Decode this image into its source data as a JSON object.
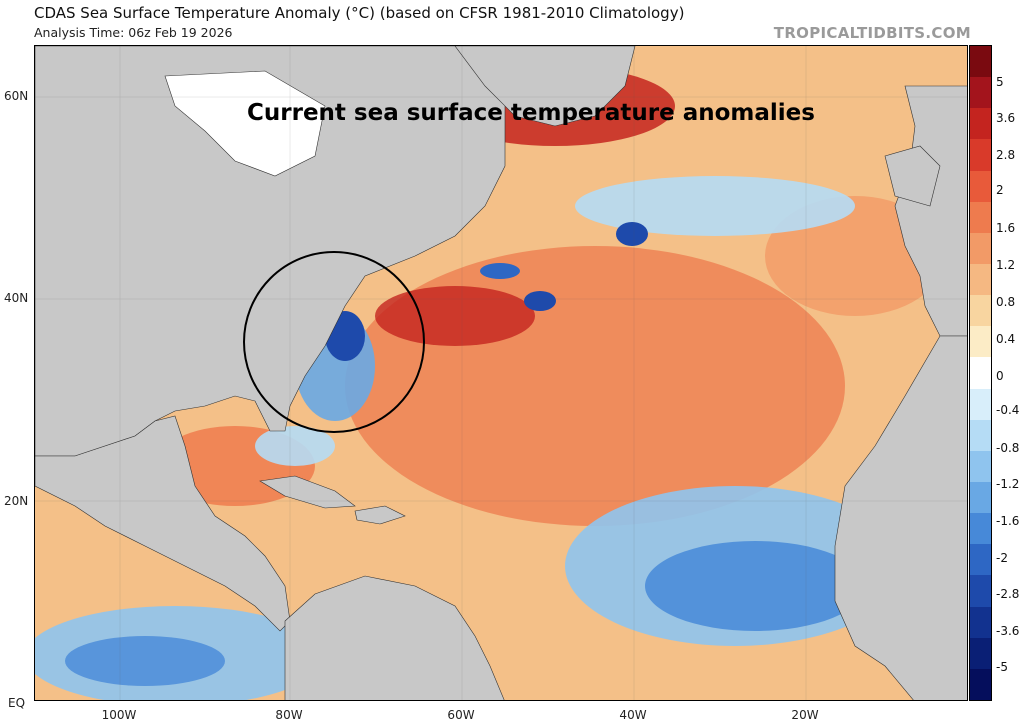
{
  "header": {
    "title": "CDAS Sea Surface Temperature Anomaly (°C) (based on CFSR 1981-2010 Climatology)",
    "analysis_time": "Analysis Time: 06z Feb 19 2026",
    "brand": "TROPICALTIDBITS.COM"
  },
  "map": {
    "overlay_title": "Current sea surface temperature anomalies",
    "lat_labels": [
      "60N",
      "40N",
      "20N",
      "EQ"
    ],
    "lon_labels": [
      "100W",
      "80W",
      "60W",
      "40W",
      "20W"
    ],
    "highlight": "circle around US East Coast / Gulf Stream cold anomaly"
  },
  "colorbar": {
    "labels": [
      "5",
      "3.6",
      "2.8",
      "2",
      "1.6",
      "1.2",
      "0.8",
      "0.4",
      "0",
      "-0.4",
      "-0.8",
      "-1.2",
      "-1.6",
      "-2",
      "-2.8",
      "-3.6",
      "-5"
    ],
    "colors": [
      "#7a0a10",
      "#a3141c",
      "#c4241f",
      "#d93a2a",
      "#e85a3a",
      "#ee7b4e",
      "#f29a67",
      "#f5b882",
      "#f8d5a0",
      "#fcecc6",
      "#ffffff",
      "#d8eefa",
      "#b5dcf5",
      "#8fc4ee",
      "#69a8e4",
      "#4789d8",
      "#2e67c4",
      "#1e4aab",
      "#12328f",
      "#0a1f75",
      "#050e5c"
    ]
  }
}
